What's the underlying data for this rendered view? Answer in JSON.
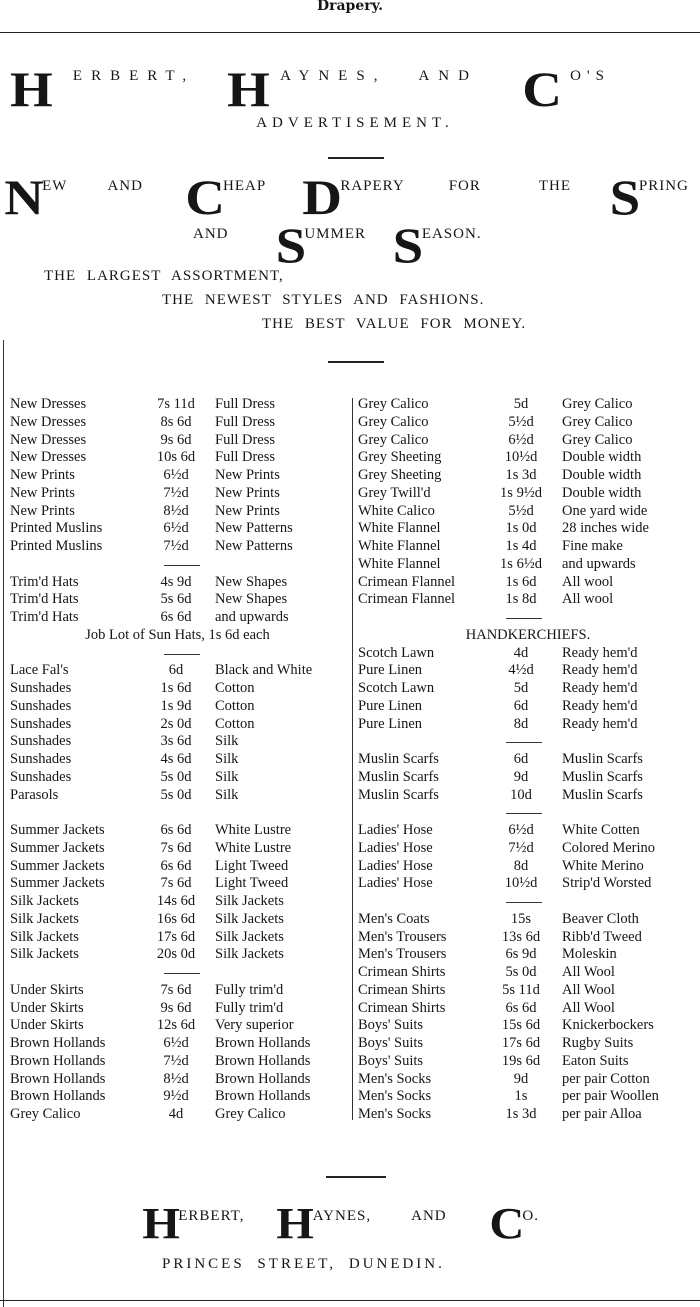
{
  "section_label": "Drapery.",
  "header": {
    "firm_line": {
      "h1": "H",
      "w1": "ERBERT,",
      "h2": "H",
      "w2": "AYNES,",
      "and": "AND",
      "c": "C",
      "w3": "O'S"
    },
    "advertisement": "ADVERTISEMENT.",
    "headline1": {
      "n": "N",
      "ew": "EW",
      "and": "AND",
      "c": "C",
      "heap": "HEAP",
      "d": "D",
      "rapery": "RAPERY",
      "for": "FOR",
      "the": "THE",
      "s": "S",
      "pring": "PRING"
    },
    "headline2": {
      "and": "AND",
      "s1": "S",
      "ummer": "UMMER",
      "s2": "S",
      "eason": "EASON."
    },
    "tagline1": "THE LARGEST ASSORTMENT,",
    "tagline2": "THE NEWEST STYLES AND FASHIONS.",
    "tagline3": "THE BEST VALUE FOR MONEY."
  },
  "left_column": [
    [
      "New Dresses",
      "7s 11d",
      "Full Dress"
    ],
    [
      "New Dresses",
      "8s 6d",
      "Full Dress"
    ],
    [
      "New Dresses",
      "9s 6d",
      "Full Dress"
    ],
    [
      "New Dresses",
      "10s 6d",
      "Full Dress"
    ],
    [
      "New Prints",
      "6½d",
      "New Prints"
    ],
    [
      "New Prints",
      "7½d",
      "New Prints"
    ],
    [
      "New Prints",
      "8½d",
      "New Prints"
    ],
    [
      "Printed Muslins",
      "6½d",
      "New Patterns"
    ],
    [
      "Printed Muslins",
      "7½d",
      "New Patterns"
    ],
    "sep",
    [
      "Trim'd Hats",
      "4s 9d",
      "New Shapes"
    ],
    [
      "Trim'd Hats",
      "5s 6d",
      "New Shapes"
    ],
    [
      "Trim'd Hats",
      "6s 6d",
      "and upwards"
    ],
    {
      "span": "Job Lot of Sun Hats, 1s 6d each"
    },
    "sep",
    [
      "Lace Fal's",
      "6d",
      "Black and White"
    ],
    [
      "Sunshades",
      "1s 6d",
      "Cotton"
    ],
    [
      "Sunshades",
      "1s 9d",
      "Cotton"
    ],
    [
      "Sunshades",
      "2s 0d",
      "Cotton"
    ],
    [
      "Sunshades",
      "3s 6d",
      "Silk"
    ],
    [
      "Sunshades",
      "4s 6d",
      "Silk"
    ],
    [
      "Sunshades",
      "5s 0d",
      "Silk"
    ],
    [
      "Parasols",
      "5s 0d",
      "Silk"
    ],
    "blank",
    [
      "Summer Jackets",
      "6s 6d",
      "White Lustre"
    ],
    [
      "Summer Jackets",
      "7s 6d",
      "White Lustre"
    ],
    [
      "Summer Jackets",
      "6s 6d",
      "Light Tweed"
    ],
    [
      "Summer Jackets",
      "7s 6d",
      "Light Tweed"
    ],
    [
      "Silk Jackets",
      "14s 6d",
      "Silk Jackets"
    ],
    [
      "Silk Jackets",
      "16s 6d",
      "Silk Jackets"
    ],
    [
      "Silk Jackets",
      "17s 6d",
      "Silk Jackets"
    ],
    [
      "Silk Jackets",
      "20s 0d",
      "Silk Jackets"
    ],
    "sep",
    [
      "Under Skirts",
      "7s 6d",
      "Fully trim'd"
    ],
    [
      "Under Skirts",
      "9s 6d",
      "Fully trim'd"
    ],
    [
      "Under Skirts",
      "12s 6d",
      "Very superior"
    ],
    [
      "Brown Hollands",
      "6½d",
      "Brown Hollands"
    ],
    [
      "Brown Hollands",
      "7½d",
      "Brown Hollands"
    ],
    [
      "Brown Hollands",
      "8½d",
      "Brown Hollands"
    ],
    [
      "Brown Hollands",
      "9½d",
      "Brown Hollands"
    ],
    [
      "Grey Calico",
      "4d",
      "Grey Calico"
    ]
  ],
  "right_column": [
    [
      "Grey Calico",
      "5d",
      "Grey Calico"
    ],
    [
      "Grey Calico",
      "5½d",
      "Grey Calico"
    ],
    [
      "Grey Calico",
      "6½d",
      "Grey Calico"
    ],
    [
      "Grey Sheeting",
      "10½d",
      "Double width"
    ],
    [
      "Grey Sheeting",
      "1s 3d",
      "Double width"
    ],
    [
      "Grey Twill'd",
      "1s 9½d",
      "Double width"
    ],
    [
      "White Calico",
      "5½d",
      "One yard wide"
    ],
    [
      "White Flannel",
      "1s 0d",
      "28 inches wide"
    ],
    [
      "White Flannel",
      "1s 4d",
      "Fine make"
    ],
    [
      "White Flannel",
      "1s 6½d",
      "and upwards"
    ],
    [
      "Crimean Flannel",
      "1s 6d",
      "All wool"
    ],
    [
      "Crimean Flannel",
      "1s 8d",
      "All wool"
    ],
    "sep",
    {
      "span": "HANDKERCHIEFS."
    },
    [
      "Scotch Lawn",
      "4d",
      "Ready hem'd"
    ],
    [
      "Pure Linen",
      "4½d",
      "Ready hem'd"
    ],
    [
      "Scotch Lawn",
      "5d",
      "Ready hem'd"
    ],
    [
      "Pure Linen",
      "6d",
      "Ready hem'd"
    ],
    [
      "Pure Linen",
      "8d",
      "Ready hem'd"
    ],
    "sep",
    [
      "Muslin Scarfs",
      "6d",
      "Muslin Scarfs"
    ],
    [
      "Muslin Scarfs",
      "9d",
      "Muslin Scarfs"
    ],
    [
      "Muslin Scarfs",
      "10d",
      "Muslin Scarfs"
    ],
    "sep",
    [
      "Ladies' Hose",
      "6½d",
      "White Cotten"
    ],
    [
      "Ladies' Hose",
      "7½d",
      "Colored Merino"
    ],
    [
      "Ladies' Hose",
      "8d",
      "White Merino"
    ],
    [
      "Ladies' Hose",
      "10½d",
      "Strip'd Worsted"
    ],
    "sep",
    [
      "Men's Coats",
      "15s",
      "Beaver Cloth"
    ],
    [
      "Men's Trousers",
      "13s 6d",
      "Ribb'd Tweed"
    ],
    [
      "Men's Trousers",
      "6s 9d",
      "Moleskin"
    ],
    [
      "Crimean Shirts",
      "5s 0d",
      "All Wool"
    ],
    [
      "Crimean Shirts",
      "5s 11d",
      "All Wool"
    ],
    [
      "Crimean Shirts",
      "6s 6d",
      "All Wool"
    ],
    [
      "Boys' Suits",
      "15s 6d",
      "Knickerbockers"
    ],
    [
      "Boys' Suits",
      "17s 6d",
      "Rugby Suits"
    ],
    [
      "Boys' Suits",
      "19s 6d",
      "Eaton Suits"
    ],
    [
      "Men's Socks",
      "9d",
      "per pair Cotton"
    ],
    [
      "Men's Socks",
      "1s",
      "per pair Woollen"
    ],
    [
      "Men's Socks",
      "1s 3d",
      "per pair Alloa"
    ]
  ],
  "footer": {
    "firm": {
      "h1": "H",
      "w1": "ERBERT,",
      "h2": "H",
      "w2": "AYNES,",
      "and": "AND",
      "c": "C",
      "w3": "O."
    },
    "address": "PRINCES STREET, DUNEDIN."
  }
}
